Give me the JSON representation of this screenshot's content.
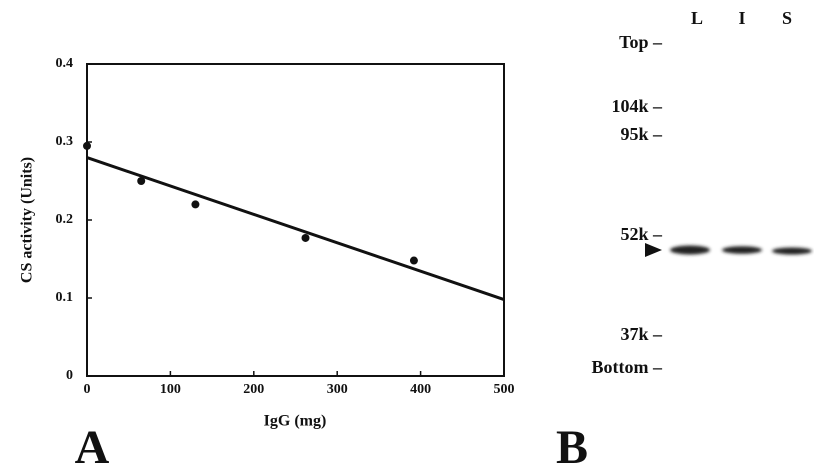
{
  "chart_data": {
    "type": "scatter",
    "xlabel": "IgG (mg)",
    "ylabel": "CS activity (Units)",
    "x": [
      0,
      65,
      130,
      262,
      392
    ],
    "values": [
      0.295,
      0.25,
      0.22,
      0.177,
      0.148
    ],
    "color": "#111111",
    "trend_line": {
      "x": [
        0,
        500
      ],
      "values": [
        0.28,
        0.098
      ]
    },
    "xlim": [
      0,
      500
    ],
    "xticks": [
      0,
      100,
      200,
      300,
      400,
      500
    ],
    "ylim": [
      0,
      0.4
    ],
    "yticks": [
      0,
      0.1,
      0.2,
      0.3,
      0.4
    ]
  },
  "panel_labels": [
    "A",
    "B"
  ],
  "blot": {
    "lanes": [
      "L",
      "I",
      "S"
    ],
    "markers": [
      "Top –",
      "104k –",
      "95k –",
      "52k –",
      "37k –",
      "Bottom –"
    ]
  }
}
